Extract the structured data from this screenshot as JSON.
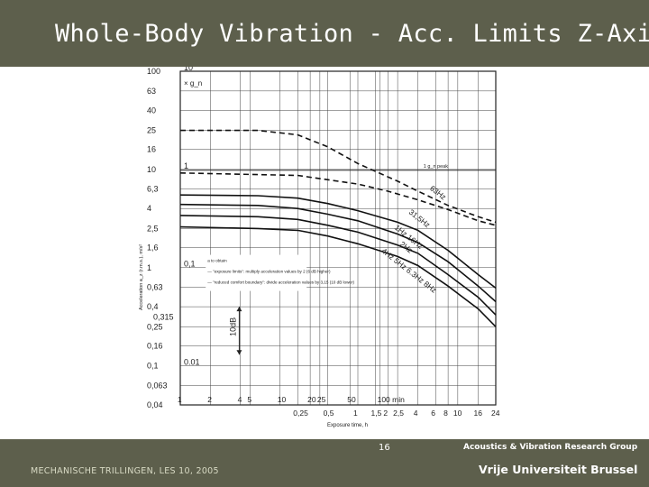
{
  "slide": {
    "title": "Whole-Body Vibration - Acc. Limits Z-Axis",
    "number": "16",
    "footer_left": "MECHANISCHE TRILLINGEN, LES 10, 2005",
    "footer_right_top": "Acoustics & Vibration Research Group",
    "footer_right_bottom": "Vrije Universiteit Brussel"
  },
  "colors": {
    "bar": "#5d5f4c",
    "ink": "#222222"
  },
  "chart_data": {
    "type": "line",
    "ylabel": "Acceleration a_z (r.m.s.), m/s²",
    "xlabel": "Exposure time, h",
    "x_scale": "log",
    "y_scale": "log",
    "xlim": [
      0.0167,
      24
    ],
    "ylim": [
      0.04,
      100
    ],
    "y_ticks": [
      100,
      63,
      40,
      25,
      16,
      10,
      6.3,
      4.0,
      2.5,
      1.6,
      1.0,
      0.63,
      0.4,
      0.25,
      0.16,
      0.1,
      0.063,
      0.04
    ],
    "y_ticks_extra": [
      0.315
    ],
    "g_ticks": [
      "10",
      "1",
      "0,1",
      "0.01"
    ],
    "g_unit": "× g_n",
    "minute_ticks": [
      "1",
      "2",
      "4",
      "5",
      "10",
      "20",
      "25",
      "50",
      "100 min"
    ],
    "hour_ticks": [
      "0,25",
      "0,5",
      "1",
      "1,5",
      "2",
      "2,5",
      "4",
      "6",
      "8",
      "10",
      "16",
      "24"
    ],
    "one_g_label": "1 g_n peak",
    "db_label": "10dB",
    "curve_labels": [
      "63Hz",
      "31,5Hz",
      "1Hz  16Hz",
      "2Hz",
      "4Hz  5Hz  6.3Hz  8Hz"
    ],
    "legend": [
      "a to obtain",
      "— \"exposure limits\": multiply acceleration values by 2 (6 dB higher)",
      "— \"reduced comfort boundary\": divide acceleration values by 3,15 (10 dB lower)"
    ],
    "series": [
      {
        "style": "dashed",
        "x": [
          0.0167,
          0.1,
          0.25,
          0.5,
          1,
          2.5,
          4,
          8,
          16,
          24
        ],
        "y": [
          25,
          25,
          22.5,
          17,
          11.5,
          7.6,
          6.0,
          4.3,
          3.3,
          2.9
        ]
      },
      {
        "style": "dashed",
        "x": [
          0.0167,
          0.25,
          1,
          2,
          4,
          8,
          16,
          24
        ],
        "y": [
          9.2,
          8.7,
          7.1,
          6.0,
          4.9,
          3.9,
          3.0,
          2.7
        ]
      },
      {
        "style": "solid",
        "x": [
          0.0167,
          0.1,
          0.25,
          0.5,
          1,
          2.5,
          4,
          8,
          16,
          24
        ],
        "y": [
          5.5,
          5.4,
          5.1,
          4.5,
          3.8,
          2.9,
          2.4,
          1.5,
          0.85,
          0.62
        ]
      },
      {
        "style": "solid",
        "x": [
          0.0167,
          0.1,
          0.25,
          0.5,
          1,
          2.5,
          4,
          8,
          16,
          24
        ],
        "y": [
          4.4,
          4.3,
          4.0,
          3.5,
          3.0,
          2.2,
          1.8,
          1.15,
          0.65,
          0.45
        ]
      },
      {
        "style": "solid",
        "x": [
          0.0167,
          0.1,
          0.25,
          0.5,
          1,
          2.5,
          4,
          8,
          16,
          24
        ],
        "y": [
          3.4,
          3.3,
          3.1,
          2.7,
          2.3,
          1.7,
          1.4,
          0.85,
          0.5,
          0.33
        ]
      },
      {
        "style": "solid",
        "x": [
          0.0167,
          0.1,
          0.25,
          0.5,
          1,
          2.5,
          4,
          8,
          16,
          24
        ],
        "y": [
          2.6,
          2.5,
          2.4,
          2.1,
          1.75,
          1.3,
          1.05,
          0.65,
          0.38,
          0.25
        ]
      }
    ]
  }
}
